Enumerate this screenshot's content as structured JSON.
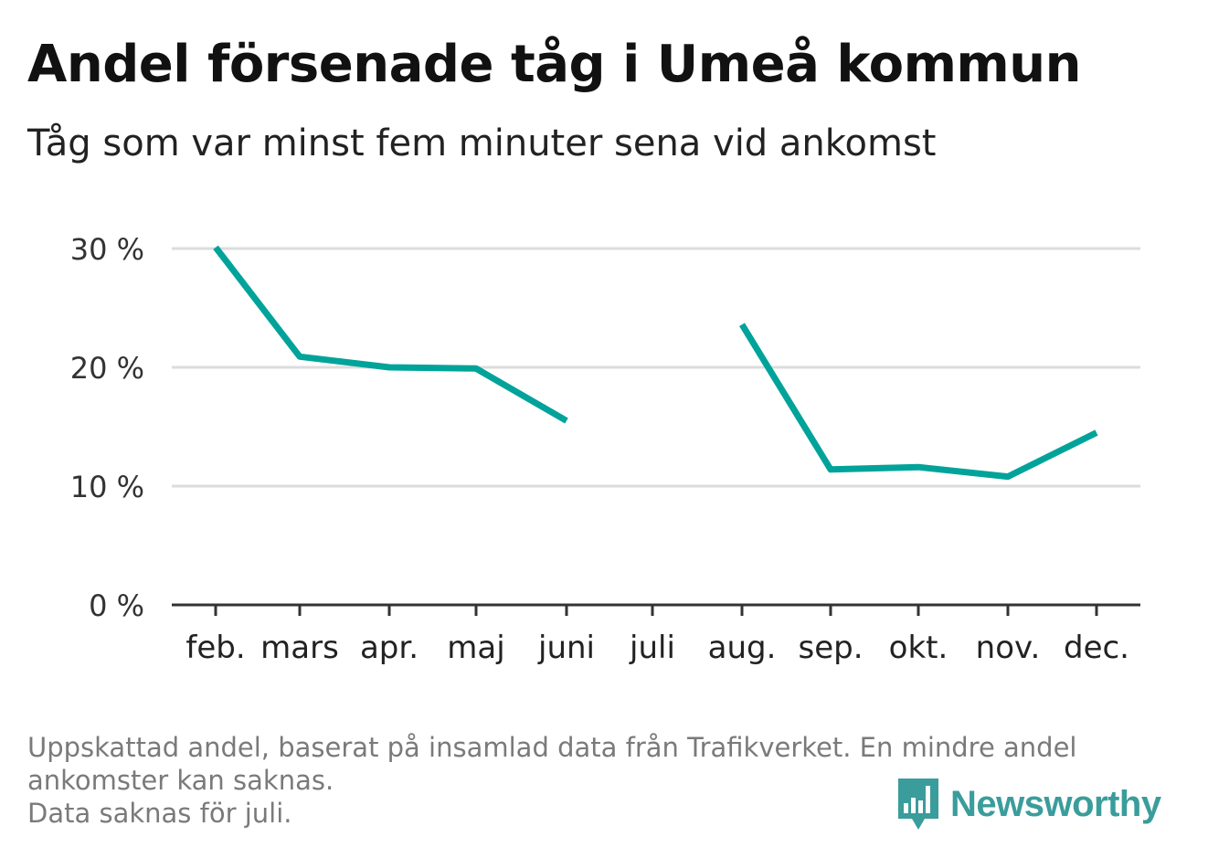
{
  "header": {
    "title": "Andel försenade tåg i Umeå kommun",
    "subtitle": "Tåg som var minst fem minuter sena vid ankomst"
  },
  "footer": {
    "line1": "Uppskattad andel, baserat på insamlad data från Trafikverket. En mindre andel",
    "line2": "ankomster kan saknas.",
    "line3": "Data saknas för juli."
  },
  "logo": {
    "name": "Newsworthy",
    "icon": "bar-chart-speech-bubble-icon"
  },
  "colors": {
    "line": "#00a39a",
    "grid": "#dcdcdc",
    "axis": "#333333",
    "logo": "#3a9d9b"
  },
  "chart_data": {
    "type": "line",
    "categories": [
      "feb.",
      "mars",
      "apr.",
      "maj",
      "juni",
      "juli",
      "aug.",
      "sep.",
      "okt.",
      "nov.",
      "dec."
    ],
    "series": [
      {
        "values": [
          30.1,
          20.9,
          20.0,
          19.9,
          15.5,
          null,
          23.6,
          11.4,
          11.6,
          10.8,
          14.5
        ]
      }
    ],
    "ylim": [
      0,
      30
    ],
    "yticks": [
      0,
      10,
      20,
      30
    ],
    "ytick_labels": [
      "0 %",
      "10 %",
      "20 %",
      "30 %"
    ],
    "grid": true,
    "xlabel": "",
    "ylabel": ""
  }
}
